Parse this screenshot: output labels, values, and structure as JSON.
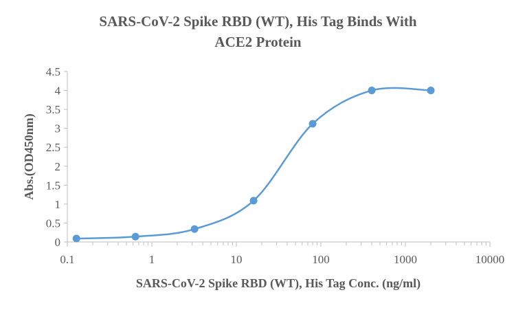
{
  "chart_data": {
    "type": "scatter",
    "title_line1": "SARS-CoV-2 Spike RBD (WT), His Tag Binds With",
    "title_line2": "ACE2 Protein",
    "xlabel": "SARS-CoV-2 Spike RBD (WT), His Tag Conc. (ng/ml)",
    "ylabel": "Abs.(OD450nm)",
    "x_scale": "log",
    "xlim": [
      0.1,
      10000
    ],
    "ylim": [
      0,
      4.5
    ],
    "x_ticks": [
      "0.1",
      "1",
      "10",
      "100",
      "1000",
      "10000"
    ],
    "y_ticks": [
      "0",
      "0.5",
      "1",
      "1.5",
      "2",
      "2.5",
      "3",
      "3.5",
      "4",
      "4.5"
    ],
    "grid": false,
    "series": [
      {
        "x": [
          0.128,
          0.64,
          3.2,
          16,
          80,
          400,
          2000
        ],
        "y": [
          0.09,
          0.14,
          0.34,
          1.09,
          3.12,
          4.0,
          4.0
        ],
        "fit": "smooth sigmoid curve",
        "color": "#5B9BD5"
      }
    ]
  }
}
